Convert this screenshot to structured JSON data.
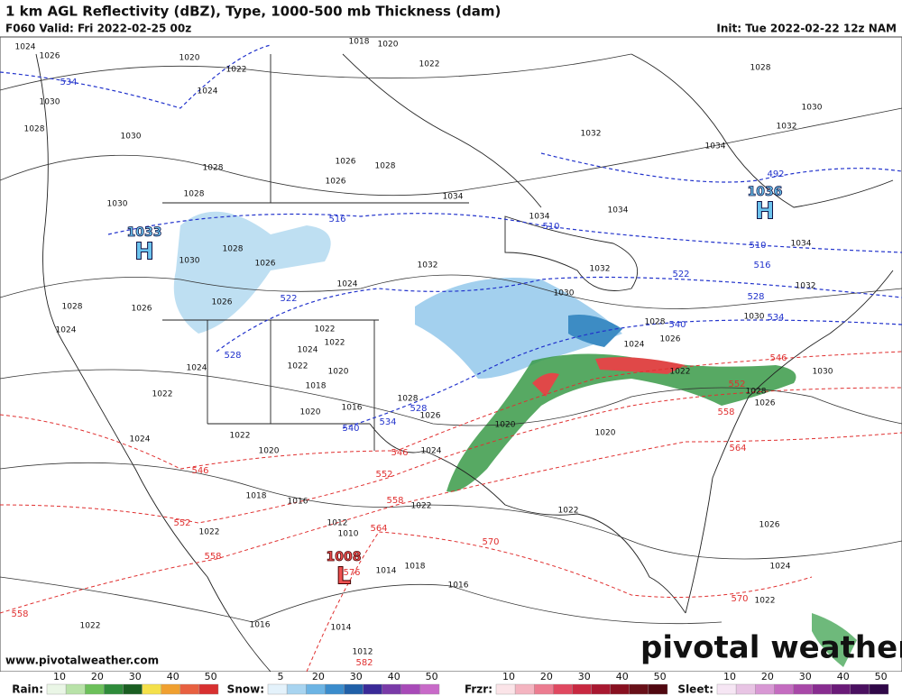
{
  "header": {
    "title": "1 km AGL Reflectivity (dBZ), Type, 1000-500 mb Thickness (dam)",
    "valid": "F060 Valid: Fri 2022-02-25 00z",
    "init": "Init: Tue 2022-02-22 12z NAM"
  },
  "pressure_centers": [
    {
      "value": "1033",
      "symbol": "H"
    },
    {
      "value": "1036",
      "symbol": "H"
    },
    {
      "value": "1008",
      "symbol": "L"
    }
  ],
  "isobar_labels": [
    "1024",
    "1026",
    "1020",
    "1022",
    "1024",
    "1030",
    "1028",
    "1030",
    "1026",
    "1028",
    "1028",
    "1026",
    "1028",
    "1030",
    "1018",
    "1020",
    "1022",
    "1032",
    "1034",
    "1032",
    "1030",
    "1028",
    "1034",
    "1034",
    "1034",
    "1032",
    "1034",
    "1032",
    "1030",
    "1032",
    "1024",
    "1026",
    "1028",
    "1030",
    "1026",
    "1026",
    "1028",
    "1024",
    "1024",
    "1022",
    "1024",
    "1022",
    "1022",
    "1024",
    "1022",
    "1020",
    "1018",
    "1020",
    "1016",
    "1022",
    "1020",
    "1028",
    "1026",
    "1024",
    "1024",
    "1026",
    "1028",
    "1030",
    "1022",
    "1028",
    "1026",
    "1030",
    "1020",
    "1020",
    "1022",
    "1022",
    "1018",
    "1016",
    "1012",
    "1010",
    "1014",
    "1018",
    "1016",
    "1022",
    "1022",
    "1016",
    "1014",
    "1012",
    "1026",
    "1024",
    "1022"
  ],
  "thickness_labels": [
    "534",
    "492",
    "516",
    "510",
    "510",
    "516",
    "522",
    "528",
    "534",
    "540",
    "522",
    "528",
    "528",
    "534",
    "540",
    "546",
    "552",
    "558",
    "564",
    "546",
    "552",
    "558",
    "564",
    "570",
    "576",
    "546",
    "552",
    "558",
    "558",
    "570",
    "582"
  ],
  "watermark": "pivotal weather",
  "url": "www.pivotalweather.com",
  "legend": [
    {
      "label": "Rain:",
      "ticks": [
        "10",
        "20",
        "30",
        "40",
        "50"
      ]
    },
    {
      "label": "Snow:",
      "ticks": [
        "5",
        "20",
        "30",
        "40",
        "50"
      ]
    },
    {
      "label": "Frzr:",
      "ticks": [
        "10",
        "20",
        "30",
        "40",
        "50"
      ]
    },
    {
      "label": "Sleet:",
      "ticks": [
        "10",
        "20",
        "30",
        "40",
        "50"
      ]
    }
  ]
}
